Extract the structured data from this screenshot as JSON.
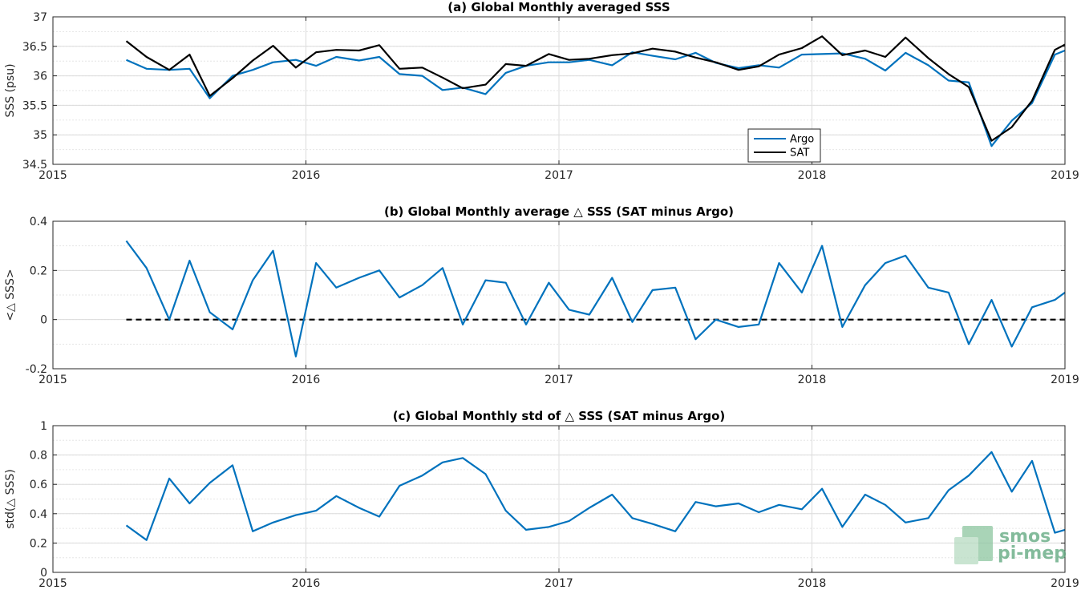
{
  "colors": {
    "argo": "#0072BD",
    "sat": "#000000",
    "grid": "#dcdcdc",
    "axes": "#262626",
    "watermark": "#5aa57a"
  },
  "watermark": {
    "line1": "smos",
    "line2": "pi-mep"
  },
  "chart_data": [
    {
      "type": "line",
      "title": "(a) Global Monthly averaged SSS",
      "xlabel": "",
      "ylabel": "SSS (psu)",
      "xlim": [
        2015,
        2019
      ],
      "ylim": [
        34.5,
        37
      ],
      "xticks": [
        2015,
        2016,
        2017,
        2018,
        2019
      ],
      "yticks": [
        34.5,
        35,
        35.5,
        36,
        36.5,
        37
      ],
      "ytick_labels": [
        "34.5",
        "35",
        "35.5",
        "36",
        "36.5",
        "37"
      ],
      "grid": "on",
      "legend": {
        "position": "bottom-center",
        "entries": [
          "Argo",
          "SAT"
        ]
      },
      "x": [
        2015.29,
        2015.37,
        2015.46,
        2015.54,
        2015.62,
        2015.71,
        2015.79,
        2015.87,
        2015.96,
        2016.04,
        2016.12,
        2016.21,
        2016.29,
        2016.37,
        2016.46,
        2016.54,
        2016.62,
        2016.71,
        2016.79,
        2016.87,
        2016.96,
        2017.04,
        2017.12,
        2017.21,
        2017.29,
        2017.37,
        2017.46,
        2017.54,
        2017.62,
        2017.71,
        2017.79,
        2017.87,
        2017.96,
        2018.04,
        2018.12,
        2018.21,
        2018.29,
        2018.37,
        2018.46,
        2018.54,
        2018.62,
        2018.71,
        2018.79,
        2018.87,
        2018.96,
        2019.0
      ],
      "series": [
        {
          "name": "Argo",
          "values": [
            36.27,
            36.12,
            36.1,
            36.12,
            35.62,
            36.0,
            36.1,
            36.23,
            36.27,
            36.17,
            36.32,
            36.26,
            36.32,
            36.03,
            36.0,
            35.76,
            35.8,
            35.69,
            36.05,
            36.17,
            36.23,
            36.23,
            36.27,
            36.18,
            36.4,
            36.34,
            36.28,
            36.39,
            36.22,
            36.13,
            36.18,
            36.14,
            36.36,
            36.37,
            36.38,
            36.29,
            36.09,
            36.39,
            36.18,
            35.92,
            35.89,
            34.81,
            35.24,
            35.54,
            36.36,
            36.43
          ]
        },
        {
          "name": "SAT",
          "values": [
            36.59,
            36.32,
            36.1,
            36.36,
            35.66,
            35.96,
            36.26,
            36.51,
            36.14,
            36.4,
            36.44,
            36.43,
            36.52,
            36.12,
            36.14,
            35.97,
            35.79,
            35.85,
            36.2,
            36.17,
            36.37,
            36.27,
            36.29,
            36.35,
            36.38,
            36.46,
            36.41,
            36.31,
            36.23,
            36.1,
            36.16,
            36.36,
            36.47,
            36.67,
            36.35,
            36.43,
            36.32,
            36.65,
            36.3,
            36.03,
            35.81,
            34.9,
            35.13,
            35.58,
            36.44,
            36.53
          ]
        }
      ]
    },
    {
      "type": "line",
      "title": "(b) Global Monthly average △ SSS (SAT minus Argo)",
      "xlabel": "",
      "ylabel": "<△ SSS>",
      "xlim": [
        2015,
        2019
      ],
      "ylim": [
        -0.2,
        0.4
      ],
      "xticks": [
        2015,
        2016,
        2017,
        2018,
        2019
      ],
      "yticks": [
        -0.2,
        0,
        0.2,
        0.4
      ],
      "ytick_labels": [
        "-0.2",
        "0",
        "0.2",
        "0.4"
      ],
      "grid": "on",
      "zero_line": true,
      "x": [
        2015.29,
        2015.37,
        2015.46,
        2015.54,
        2015.62,
        2015.71,
        2015.79,
        2015.87,
        2015.96,
        2016.04,
        2016.12,
        2016.21,
        2016.29,
        2016.37,
        2016.46,
        2016.54,
        2016.62,
        2016.71,
        2016.79,
        2016.87,
        2016.96,
        2017.04,
        2017.12,
        2017.21,
        2017.29,
        2017.37,
        2017.46,
        2017.54,
        2017.62,
        2017.71,
        2017.79,
        2017.87,
        2017.96,
        2018.04,
        2018.12,
        2018.21,
        2018.29,
        2018.37,
        2018.46,
        2018.54,
        2018.62,
        2018.71,
        2018.79,
        2018.87,
        2018.96,
        2019.0
      ],
      "series": [
        {
          "name": "",
          "values": [
            0.32,
            0.21,
            0.0,
            0.24,
            0.03,
            -0.04,
            0.16,
            0.28,
            -0.15,
            0.23,
            0.13,
            0.17,
            0.2,
            0.09,
            0.14,
            0.21,
            -0.02,
            0.16,
            0.15,
            -0.02,
            0.15,
            0.04,
            0.02,
            0.17,
            -0.01,
            0.12,
            0.13,
            -0.08,
            0.0,
            -0.03,
            -0.02,
            0.23,
            0.11,
            0.3,
            -0.03,
            0.14,
            0.23,
            0.26,
            0.13,
            0.11,
            -0.1,
            0.08,
            -0.11,
            0.05,
            0.08,
            0.11
          ]
        }
      ]
    },
    {
      "type": "line",
      "title": "(c) Global Monthly std of △ SSS (SAT minus Argo)",
      "xlabel": "",
      "ylabel": "std(△ SSS)",
      "xlim": [
        2015,
        2019
      ],
      "ylim": [
        0,
        1
      ],
      "xticks": [
        2015,
        2016,
        2017,
        2018,
        2019
      ],
      "yticks": [
        0,
        0.2,
        0.4,
        0.6,
        0.8,
        1
      ],
      "ytick_labels": [
        "0",
        "0.2",
        "0.4",
        "0.6",
        "0.8",
        "1"
      ],
      "grid": "on",
      "x": [
        2015.29,
        2015.37,
        2015.46,
        2015.54,
        2015.62,
        2015.71,
        2015.79,
        2015.87,
        2015.96,
        2016.04,
        2016.12,
        2016.21,
        2016.29,
        2016.37,
        2016.46,
        2016.54,
        2016.62,
        2016.71,
        2016.79,
        2016.87,
        2016.96,
        2017.04,
        2017.12,
        2017.21,
        2017.29,
        2017.37,
        2017.46,
        2017.54,
        2017.62,
        2017.71,
        2017.79,
        2017.87,
        2017.96,
        2018.04,
        2018.12,
        2018.21,
        2018.29,
        2018.37,
        2018.46,
        2018.54,
        2018.62,
        2018.71,
        2018.79,
        2018.87,
        2018.96,
        2019.0
      ],
      "series": [
        {
          "name": "",
          "values": [
            0.32,
            0.22,
            0.64,
            0.47,
            0.61,
            0.73,
            0.28,
            0.34,
            0.39,
            0.42,
            0.52,
            0.44,
            0.38,
            0.59,
            0.66,
            0.75,
            0.78,
            0.67,
            0.42,
            0.29,
            0.31,
            0.35,
            0.44,
            0.53,
            0.37,
            0.33,
            0.28,
            0.48,
            0.45,
            0.47,
            0.41,
            0.46,
            0.43,
            0.57,
            0.31,
            0.53,
            0.46,
            0.34,
            0.37,
            0.56,
            0.66,
            0.82,
            0.55,
            0.76,
            0.27,
            0.29
          ]
        }
      ]
    }
  ]
}
